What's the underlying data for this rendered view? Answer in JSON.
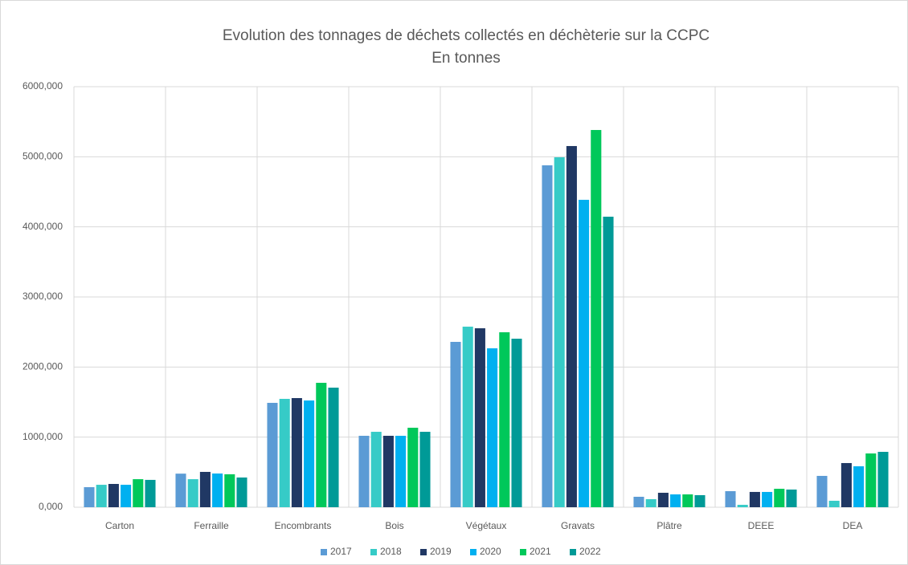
{
  "chart_data": {
    "type": "bar",
    "title": "Evolution des tonnages de déchets collectés en déchèterie sur la CCPC",
    "subtitle": "En tonnes",
    "categories": [
      "Carton",
      "Ferraille",
      "Encombrants",
      "Bois",
      "Végétaux",
      "Gravats",
      "Plâtre",
      "DEEE",
      "DEA"
    ],
    "series": [
      {
        "name": "2017",
        "color": "#5b9bd5",
        "values": [
          286,
          479,
          1489,
          1019,
          2359,
          4878,
          149,
          229,
          447
        ]
      },
      {
        "name": "2018",
        "color": "#36cbc7",
        "values": [
          320,
          400,
          1546,
          1076,
          2576,
          4993,
          115,
          34,
          92
        ]
      },
      {
        "name": "2019",
        "color": "#203864",
        "values": [
          332,
          504,
          1557,
          1019,
          2553,
          5153,
          206,
          218,
          630
        ]
      },
      {
        "name": "2020",
        "color": "#00b0f0",
        "values": [
          320,
          481,
          1523,
          1019,
          2267,
          4386,
          183,
          218,
          584
        ]
      },
      {
        "name": "2021",
        "color": "#00c85a",
        "values": [
          400,
          470,
          1775,
          1134,
          2496,
          5382,
          183,
          263,
          767
        ]
      },
      {
        "name": "2022",
        "color": "#009a97",
        "values": [
          390,
          424,
          1706,
          1076,
          2404,
          4145,
          172,
          252,
          790
        ]
      }
    ],
    "ylim": [
      0,
      6000
    ],
    "yticks": [
      {
        "value": 0,
        "label": "0,000"
      },
      {
        "value": 1000,
        "label": "1000,000"
      },
      {
        "value": 2000,
        "label": "2000,000"
      },
      {
        "value": 3000,
        "label": "3000,000"
      },
      {
        "value": 4000,
        "label": "4000,000"
      },
      {
        "value": 5000,
        "label": "5000,000"
      },
      {
        "value": 6000,
        "label": "6000,000"
      }
    ],
    "grid": true,
    "legend": "bottom"
  }
}
